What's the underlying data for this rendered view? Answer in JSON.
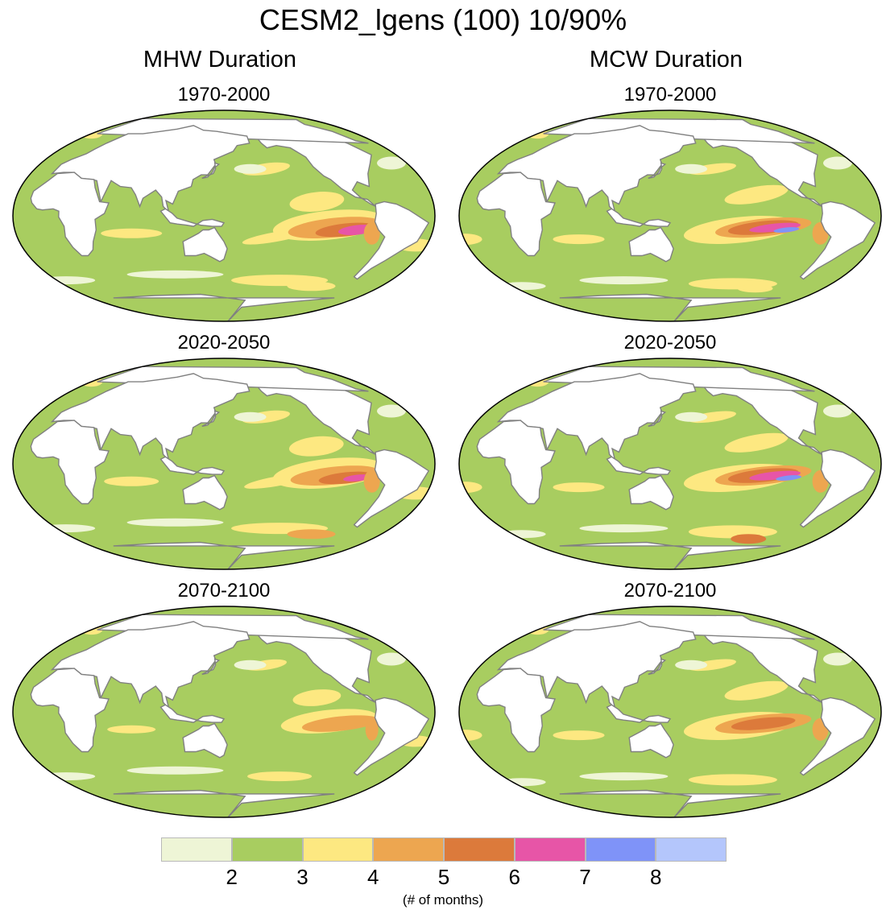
{
  "title": "CESM2_lgens (100) 10/90%",
  "columns": [
    {
      "title": "MHW Duration",
      "panels": [
        "1970-2000",
        "2020-2050",
        "2070-2100"
      ]
    },
    {
      "title": "MCW Duration",
      "panels": [
        "1970-2000",
        "2020-2050",
        "2070-2100"
      ]
    }
  ],
  "colorbar": {
    "colors": [
      "#eef5d6",
      "#a8cd60",
      "#fde881",
      "#eda650",
      "#dc7a3b",
      "#e755a7",
      "#7f93f8",
      "#b4c6fc"
    ],
    "labels": [
      "2",
      "3",
      "4",
      "5",
      "6",
      "7",
      "8"
    ],
    "unit": "(# of months)"
  },
  "map_colors": {
    "land": "#ffffff",
    "coast": "#808080",
    "ocean_base": "#a8cd60"
  }
}
